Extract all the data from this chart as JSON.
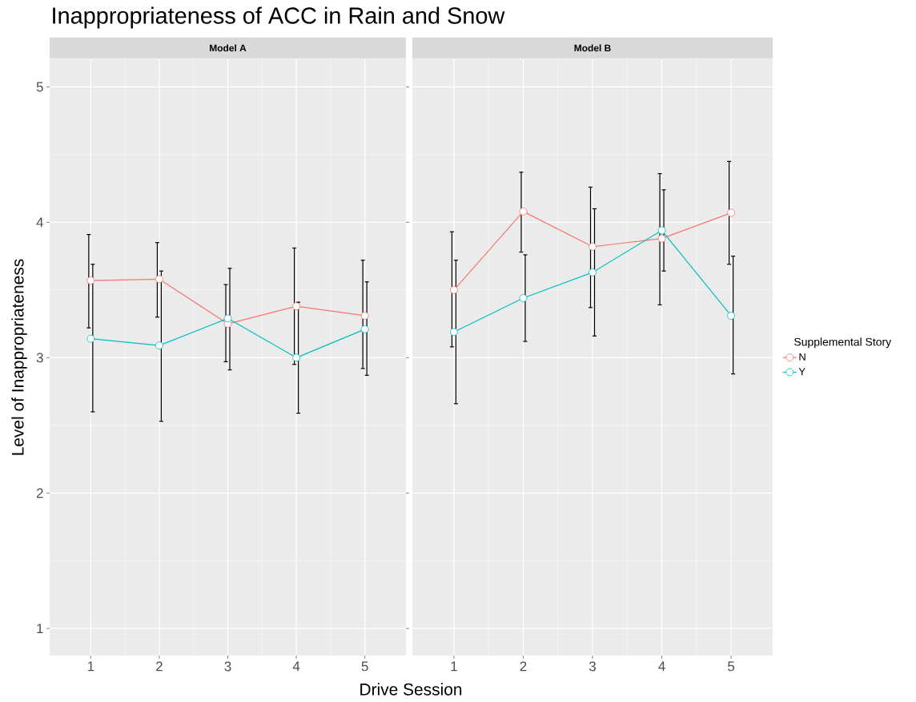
{
  "chart_data": [
    {
      "type": "line",
      "title": "Inappropriateness of ACC in Rain and Snow",
      "subtitle": "Model A",
      "xlabel": "Drive Session",
      "ylabel": "Level of Inappropriateness",
      "categories": [
        "1",
        "2",
        "3",
        "4",
        "5"
      ],
      "ylim": [
        0.8,
        5.21
      ],
      "yticks": [
        1,
        2,
        3,
        4,
        5
      ],
      "grid": true,
      "marker": "circle",
      "line_style": "solid",
      "series": [
        {
          "color": "#f8766d",
          "values": [
            3.57,
            3.58,
            3.25,
            3.38,
            3.31
          ],
          "errors": [
            [
              3.22,
              3.91
            ],
            [
              3.3,
              3.85
            ],
            [
              2.97,
              3.54
            ],
            [
              2.95,
              3.81
            ],
            [
              2.92,
              3.72
            ]
          ]
        },
        {
          "color": "#00bfc4",
          "values": [
            3.14,
            3.09,
            3.29,
            3.0,
            3.21
          ],
          "errors": [
            [
              2.6,
              3.69
            ],
            [
              2.53,
              3.64
            ],
            [
              2.91,
              3.66
            ],
            [
              2.59,
              3.41
            ],
            [
              2.87,
              3.56
            ]
          ]
        }
      ]
    },
    {
      "type": "line",
      "subtitle": "Model B",
      "legend_title": "Supplemental Story",
      "legend": "right",
      "tick_labels": "x",
      "categories": [
        "1",
        "2",
        "3",
        "4",
        "5"
      ],
      "ylim": [
        0.8,
        5.21
      ],
      "yticks": [
        1,
        2,
        3,
        4,
        5
      ],
      "grid": true,
      "marker": "circle",
      "line_style": "solid",
      "series": [
        {
          "name": "N",
          "color": "#f8766d",
          "values": [
            3.5,
            4.08,
            3.82,
            3.88,
            4.07
          ],
          "errors": [
            [
              3.08,
              3.93
            ],
            [
              3.78,
              4.37
            ],
            [
              3.37,
              4.26
            ],
            [
              3.39,
              4.36
            ],
            [
              3.69,
              4.45
            ]
          ]
        },
        {
          "name": "Y",
          "color": "#00bfc4",
          "values": [
            3.19,
            3.44,
            3.63,
            3.94,
            3.31
          ],
          "errors": [
            [
              2.66,
              3.72
            ],
            [
              3.12,
              3.76
            ],
            [
              3.16,
              4.1
            ],
            [
              3.64,
              4.24
            ],
            [
              2.88,
              3.75
            ]
          ]
        }
      ]
    }
  ]
}
